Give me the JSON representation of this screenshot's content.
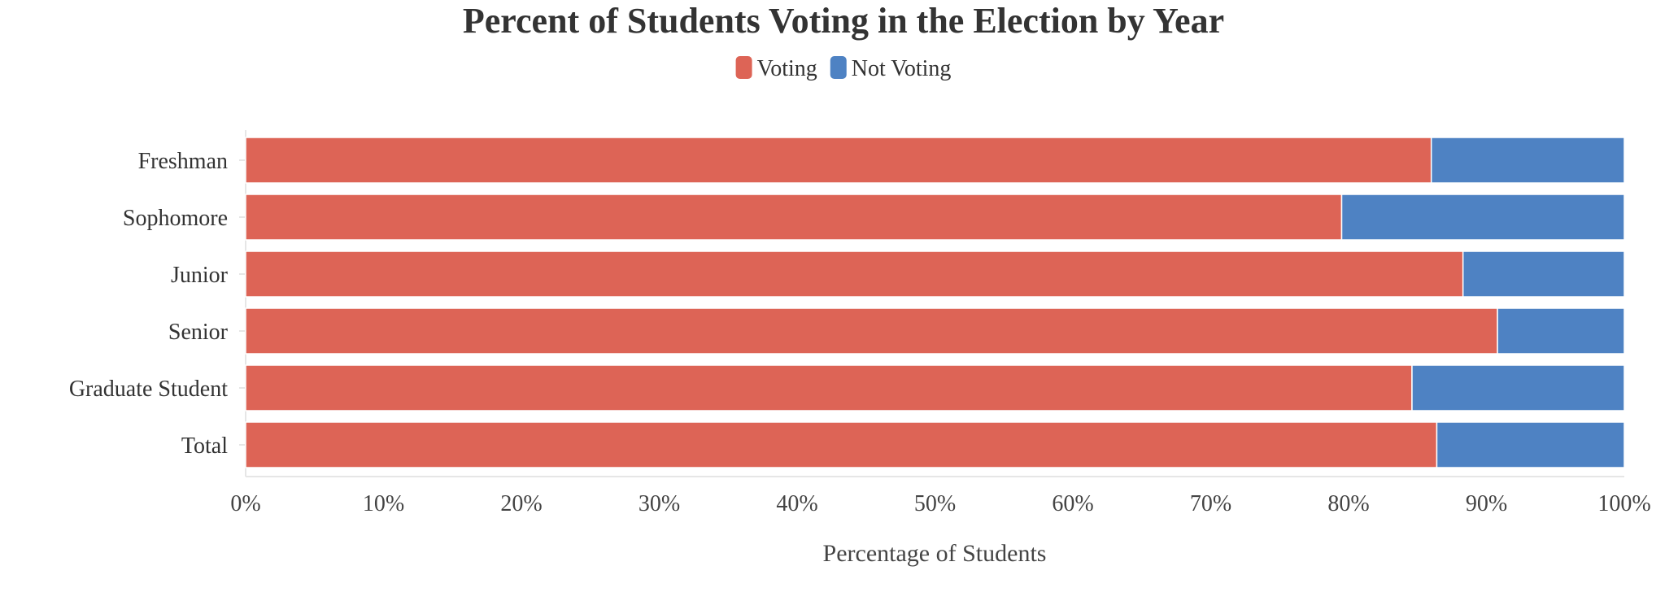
{
  "chart_data": {
    "type": "bar",
    "orientation": "horizontal",
    "stacked": true,
    "title": "Percent of Students Voting in the Election by Year",
    "xlabel": "Percentage of Students",
    "ylabel": "",
    "xlim": [
      0,
      100
    ],
    "x_ticks": [
      "0%",
      "10%",
      "20%",
      "30%",
      "40%",
      "50%",
      "60%",
      "70%",
      "80%",
      "90%",
      "100%"
    ],
    "categories": [
      "Freshman",
      "Sophomore",
      "Junior",
      "Senior",
      "Graduate Student",
      "Total"
    ],
    "series": [
      {
        "name": "Voting",
        "color": "#dd6456",
        "values": [
          86,
          79.5,
          88.3,
          90.8,
          84.6,
          86.4
        ]
      },
      {
        "name": "Not Voting",
        "color": "#4e82c3",
        "values": [
          14,
          20.5,
          11.7,
          9.2,
          15.4,
          13.6
        ]
      }
    ],
    "legend_position": "top-center",
    "grid": false
  }
}
